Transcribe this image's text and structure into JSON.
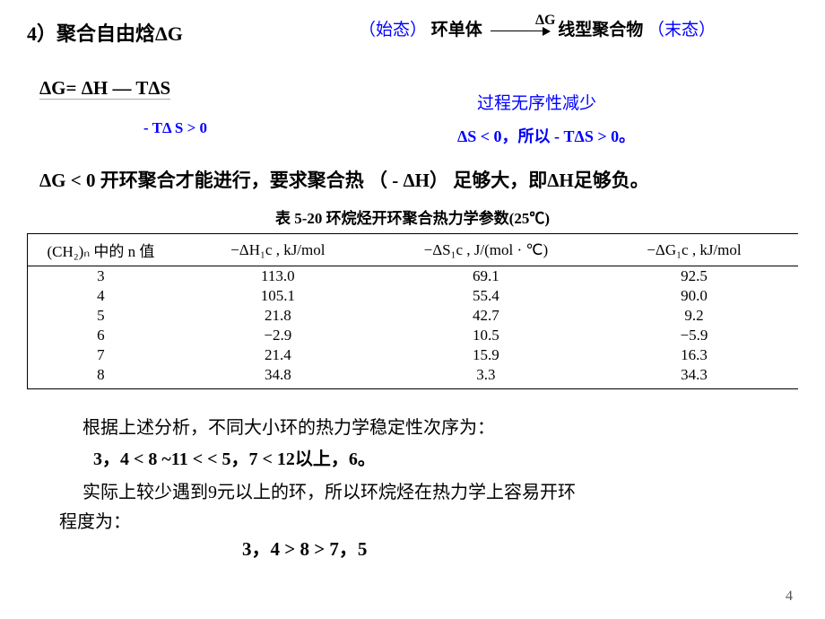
{
  "title": {
    "num": "4）",
    "text": "聚合自由焓ΔG"
  },
  "reaction": {
    "dg_over": "ΔG",
    "start_state": "（始态）",
    "monomer": "环单体",
    "polymer": "线型聚合物",
    "end_state": "（末态）",
    "process_note": "过程无序性减少"
  },
  "equation": "ΔG= ΔH — TΔS",
  "tds_note": "- TΔ S  > 0",
  "ds_note": "ΔS < 0，所以 - TΔS  > 0。",
  "condition": "ΔG < 0  开环聚合才能进行，要求聚合热 （ - ΔH） 足够大，即ΔH足够负。",
  "table": {
    "caption": "表 5-20   环烷烃开环聚合热力学参数(25℃)",
    "headers": {
      "c1": "(CH₂)ₙ 中的 n 值",
      "c2": "−ΔH₁c , kJ/mol",
      "c3": "−ΔS₁c , J/(mol · ℃)",
      "c4": "−ΔG₁c , kJ/mol"
    },
    "rows": [
      {
        "n": "3",
        "dh": "113.0",
        "ds": "69.1",
        "dg": "92.5"
      },
      {
        "n": "4",
        "dh": "105.1",
        "ds": "55.4",
        "dg": "90.0"
      },
      {
        "n": "5",
        "dh": "21.8",
        "ds": "42.7",
        "dg": "9.2"
      },
      {
        "n": "6",
        "dh": "−2.9",
        "ds": "10.5",
        "dg": "−5.9"
      },
      {
        "n": "7",
        "dh": "21.4",
        "ds": "15.9",
        "dg": "16.3"
      },
      {
        "n": "8",
        "dh": "34.8",
        "ds": "3.3",
        "dg": "34.3"
      }
    ]
  },
  "analysis_intro": "根据上述分析，不同大小环的热力学稳定性次序为：",
  "stability_order": "3，4  <  8 ~11 < < 5，7  <  12以上，6。",
  "practical_line1": "实际上较少遇到9元以上的环，所以环烷烃在热力学上容易开环",
  "practical_line2": "程度为：",
  "ease_order": "3，4  >  8  >  7，5",
  "page_number": "4",
  "colors": {
    "text_black": "#000000",
    "text_blue": "#0000ff",
    "background": "#ffffff",
    "page_num": "#555555",
    "border": "#000000"
  },
  "typography": {
    "title_fontsize": 22,
    "body_fontsize": 20,
    "table_fontsize": 17,
    "font_family": "SimSun / 宋体 (Chinese serif)"
  }
}
